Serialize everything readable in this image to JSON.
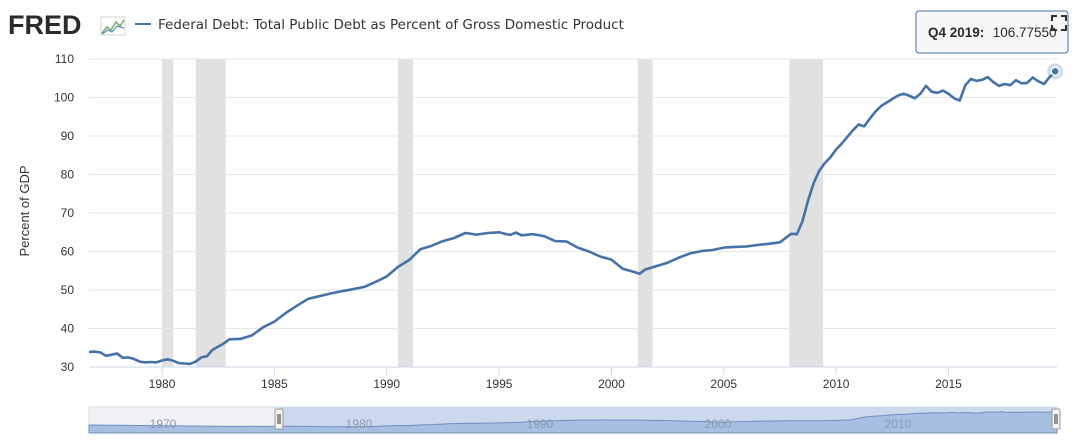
{
  "header": {
    "logo_text": "FRED",
    "series_title": "Federal Debt: Total Public Debt as Percent of Gross Domestic Product"
  },
  "tooltip": {
    "period_label": "Q4 2019:",
    "value_label": "106.77550"
  },
  "icons": {
    "logo": "fred-logo-chart-icon",
    "fullscreen": "expand-fullscreen-icon"
  },
  "navigator": {
    "labels": [
      "1970",
      "1980",
      "1990",
      "2000",
      "2010"
    ]
  },
  "colors": {
    "line": "#4572a7",
    "recession": "#e1e1e1",
    "navigator_selected": "#c8d6eb",
    "navigator_fill": "#a7bfe0",
    "handle": "#f2f2f2"
  },
  "chart_data": {
    "type": "line",
    "title": "Federal Debt: Total Public Debt as Percent of Gross Domestic Product",
    "xlabel": "",
    "ylabel": "Percent of GDP",
    "xlim": [
      1976.75,
      2019.83
    ],
    "ylim": [
      30,
      110
    ],
    "yticks": [
      30,
      40,
      50,
      60,
      70,
      80,
      90,
      100,
      110
    ],
    "xticks": [
      1980,
      1985,
      1990,
      1995,
      2000,
      2005,
      2010,
      2015
    ],
    "grid": true,
    "legend": "top-left",
    "recessions": [
      [
        1980.0,
        1980.5
      ],
      [
        1981.5,
        1982.83
      ],
      [
        1990.5,
        1991.17
      ],
      [
        2001.17,
        2001.83
      ],
      [
        2007.92,
        2009.42
      ]
    ],
    "series": [
      {
        "name": "Federal Debt: Total Public Debt as Percent of Gross Domestic Product",
        "x": [
          1976.75,
          1977.0,
          1977.25,
          1977.5,
          1977.75,
          1978.0,
          1978.25,
          1978.5,
          1978.75,
          1979.0,
          1979.25,
          1979.5,
          1979.75,
          1980.0,
          1980.25,
          1980.5,
          1980.75,
          1981.0,
          1981.25,
          1981.5,
          1981.75,
          1982.0,
          1982.25,
          1982.5,
          1982.75,
          1983.0,
          1983.5,
          1984.0,
          1984.5,
          1985.0,
          1985.5,
          1986.0,
          1986.5,
          1987.0,
          1987.5,
          1988.0,
          1988.5,
          1989.0,
          1989.5,
          1990.0,
          1990.5,
          1991.0,
          1991.5,
          1992.0,
          1992.5,
          1993.0,
          1993.5,
          1994.0,
          1994.5,
          1995.0,
          1995.25,
          1995.5,
          1995.75,
          1996.0,
          1996.5,
          1997.0,
          1997.5,
          1998.0,
          1998.5,
          1999.0,
          1999.5,
          2000.0,
          2000.5,
          2001.0,
          2001.25,
          2001.5,
          2002.0,
          2002.5,
          2003.0,
          2003.5,
          2004.0,
          2004.5,
          2005.0,
          2005.5,
          2006.0,
          2006.5,
          2007.0,
          2007.5,
          2008.0,
          2008.25,
          2008.5,
          2008.75,
          2009.0,
          2009.25,
          2009.5,
          2009.75,
          2010.0,
          2010.25,
          2010.5,
          2010.75,
          2011.0,
          2011.25,
          2011.5,
          2011.75,
          2012.0,
          2012.5,
          2012.75,
          2013.0,
          2013.25,
          2013.5,
          2013.75,
          2014.0,
          2014.25,
          2014.5,
          2014.75,
          2015.0,
          2015.25,
          2015.5,
          2015.75,
          2016.0,
          2016.25,
          2016.5,
          2016.75,
          2017.0,
          2017.25,
          2017.5,
          2017.75,
          2018.0,
          2018.25,
          2018.5,
          2018.75,
          2019.0,
          2019.25,
          2019.5,
          2019.75
        ],
        "values": [
          33.9,
          34.0,
          33.8,
          32.9,
          33.2,
          33.5,
          32.4,
          32.5,
          32.1,
          31.4,
          31.2,
          31.3,
          31.2,
          31.7,
          32.0,
          31.6,
          31.0,
          30.9,
          30.8,
          31.4,
          32.5,
          32.8,
          34.5,
          35.3,
          36.1,
          37.2,
          37.3,
          38.2,
          40.3,
          41.8,
          44.0,
          45.9,
          47.7,
          48.4,
          49.1,
          49.7,
          50.2,
          50.8,
          52.1,
          53.5,
          56.0,
          57.8,
          60.6,
          61.5,
          62.7,
          63.5,
          64.8,
          64.4,
          64.8,
          65.0,
          64.6,
          64.3,
          64.9,
          64.2,
          64.5,
          64.0,
          62.7,
          62.6,
          61.0,
          60.0,
          58.7,
          57.9,
          55.5,
          54.7,
          54.2,
          55.3,
          56.2,
          57.1,
          58.4,
          59.5,
          60.1,
          60.4,
          61.0,
          61.2,
          61.3,
          61.7,
          62.0,
          62.4,
          64.6,
          64.5,
          67.8,
          73.2,
          77.8,
          81.0,
          83.0,
          84.5,
          86.5,
          88.0,
          89.8,
          91.5,
          93.0,
          92.5,
          94.5,
          96.3,
          97.8,
          99.6,
          100.5,
          101.0,
          100.5,
          99.8,
          101.0,
          103.0,
          101.5,
          101.2,
          101.8,
          101.0,
          99.8,
          99.2,
          103.2,
          104.8,
          104.3,
          104.6,
          105.3,
          104.0,
          103.0,
          103.5,
          103.2,
          104.5,
          103.7,
          103.8,
          105.2,
          104.2,
          103.5,
          105.3,
          106.8
        ]
      }
    ]
  }
}
